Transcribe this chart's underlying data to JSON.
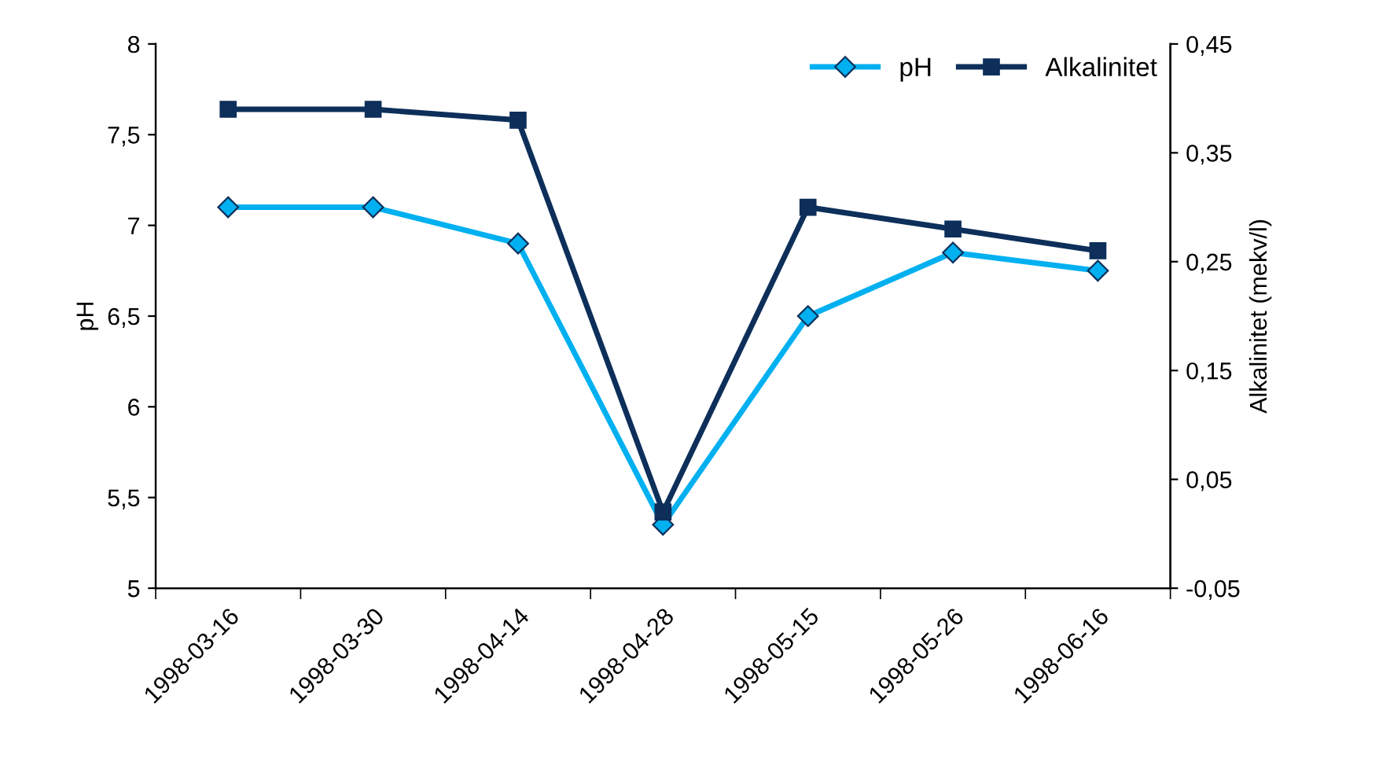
{
  "chart_data": {
    "type": "line",
    "ylabel": "pH",
    "y2label": "Alkalinitet (mekv/l)",
    "categories": [
      "1998-03-16",
      "1998-03-30",
      "1998-04-14",
      "1998-04-28",
      "1998-05-15",
      "1998-05-26",
      "1998-06-16"
    ],
    "series": [
      {
        "name": "pH",
        "color": "#00b0f0",
        "marker": "diamond",
        "values": [
          7.1,
          7.1,
          6.9,
          5.35,
          6.5,
          6.85,
          6.75
        ]
      },
      {
        "name": "Alkalinitet",
        "color": "#0d2f5a",
        "marker": "square",
        "axis": "y2",
        "values": [
          0.39,
          0.39,
          0.38,
          0.02,
          0.3,
          0.28,
          0.26
        ]
      }
    ],
    "ylim": [
      5,
      8
    ],
    "yticks": [
      5,
      {
        "value": 5.5,
        "label": "5,5"
      },
      6,
      {
        "value": 6.5,
        "label": "6,5"
      },
      7,
      {
        "value": 7.5,
        "label": "7,5"
      },
      8
    ],
    "y2lim": [
      -0.05,
      0.45
    ],
    "y2ticks": [
      {
        "value": -0.05,
        "label": "-0,05"
      },
      {
        "value": 0.05,
        "label": "0,05"
      },
      {
        "value": 0.15,
        "label": "0,15"
      },
      {
        "value": 0.25,
        "label": "0,25"
      },
      {
        "value": 0.35,
        "label": "0,35"
      },
      {
        "value": 0.45,
        "label": "0,45"
      }
    ],
    "grid": false,
    "legend": "top right",
    "line_style": "solid"
  }
}
